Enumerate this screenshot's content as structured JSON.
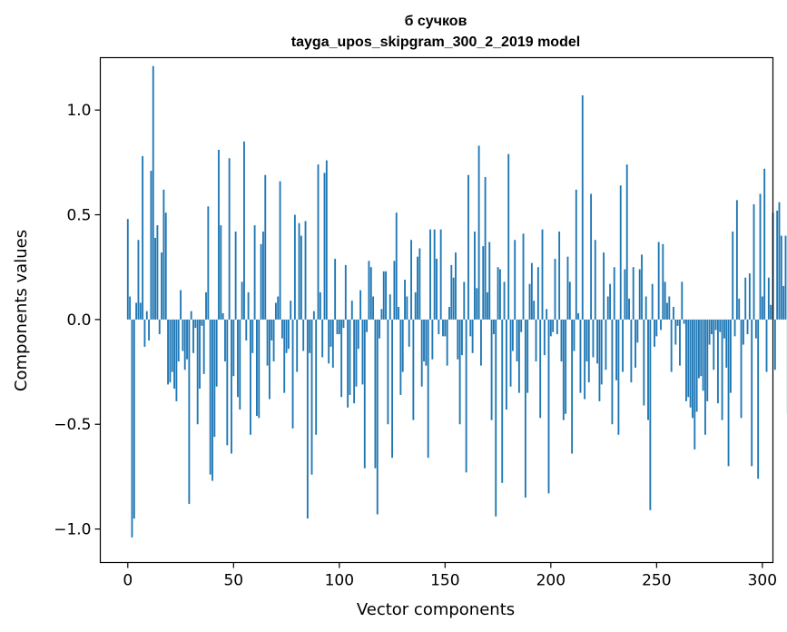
{
  "chart_data": {
    "type": "bar",
    "title": "б сучков",
    "subtitle": "tayga_upos_skipgram_300_2_2019 model",
    "xlabel": "Vector components",
    "ylabel": "Components values",
    "xlim": [
      -13,
      305
    ],
    "ylim": [
      -1.16,
      1.25
    ],
    "xticks": [
      0,
      50,
      100,
      150,
      200,
      250,
      300
    ],
    "xtick_labels": [
      "0",
      "50",
      "100",
      "150",
      "200",
      "250",
      "300"
    ],
    "yticks": [
      -1.0,
      -0.5,
      0.0,
      0.5,
      1.0
    ],
    "ytick_labels": [
      "−1.0",
      "−0.5",
      "0.0",
      "0.5",
      "1.0"
    ],
    "bar_color": "#1f77b4",
    "series": [
      {
        "name": "components",
        "values": [
          0.48,
          0.11,
          -1.04,
          -0.95,
          0.08,
          0.38,
          0.08,
          0.78,
          -0.13,
          0.04,
          -0.1,
          0.71,
          1.21,
          0.39,
          0.45,
          -0.07,
          0.32,
          0.62,
          0.51,
          -0.31,
          -0.3,
          -0.25,
          -0.33,
          -0.39,
          -0.2,
          0.14,
          -0.15,
          -0.24,
          -0.19,
          -0.88,
          0.04,
          -0.16,
          -0.04,
          -0.5,
          -0.33,
          -0.03,
          -0.26,
          0.13,
          0.54,
          -0.74,
          -0.77,
          -0.56,
          -0.32,
          0.81,
          0.45,
          0.03,
          -0.2,
          -0.6,
          0.77,
          -0.64,
          -0.27,
          0.42,
          -0.37,
          -0.43,
          0.18,
          0.85,
          -0.1,
          0.13,
          -0.55,
          -0.16,
          0.45,
          -0.46,
          -0.47,
          0.36,
          0.42,
          0.69,
          -0.22,
          -0.38,
          -0.1,
          -0.2,
          0.08,
          0.11,
          0.66,
          -0.09,
          -0.35,
          -0.16,
          -0.14,
          0.09,
          -0.52,
          0.5,
          -0.25,
          0.46,
          0.4,
          -0.15,
          0.47,
          -0.95,
          -0.16,
          -0.74,
          0.04,
          -0.55,
          0.74,
          0.13,
          -0.18,
          0.7,
          0.76,
          -0.21,
          -0.13,
          -0.23,
          0.29,
          -0.07,
          -0.07,
          -0.37,
          -0.04,
          0.26,
          -0.42,
          -0.36,
          0.09,
          -0.4,
          -0.32,
          -0.14,
          0.14,
          -0.31,
          -0.71,
          -0.06,
          0.28,
          0.25,
          0.11,
          -0.71,
          -0.93,
          -0.09,
          0.05,
          0.23,
          0.23,
          -0.5,
          0.12,
          -0.66,
          0.28,
          0.51,
          0.06,
          -0.36,
          -0.25,
          0.19,
          0.11,
          -0.13,
          0.38,
          -0.48,
          0.13,
          0.3,
          0.34,
          -0.32,
          -0.2,
          -0.22,
          -0.66,
          0.43,
          -0.19,
          0.43,
          0.29,
          -0.07,
          0.43,
          -0.08,
          -0.08,
          -0.22,
          0.06,
          0.26,
          0.2,
          0.32,
          -0.19,
          -0.5,
          -0.17,
          0.18,
          -0.73,
          0.69,
          -0.08,
          -0.16,
          0.42,
          0.15,
          0.83,
          -0.22,
          0.35,
          0.68,
          0.13,
          0.37,
          -0.48,
          -0.07,
          -0.94,
          0.25,
          0.24,
          -0.78,
          0.18,
          -0.43,
          0.79,
          -0.32,
          -0.15,
          0.38,
          -0.2,
          -0.35,
          -0.06,
          0.41,
          -0.85,
          -0.35,
          0.17,
          0.27,
          0.09,
          -0.2,
          0.25,
          -0.47,
          0.43,
          -0.17,
          0.05,
          -0.83,
          -0.08,
          -0.06,
          0.29,
          -0.07,
          0.42,
          -0.2,
          -0.48,
          -0.45,
          0.3,
          0.18,
          -0.64,
          -0.15,
          0.62,
          0.03,
          -0.35,
          1.07,
          -0.38,
          -0.2,
          -0.3,
          0.6,
          -0.18,
          0.38,
          -0.21,
          -0.39,
          -0.31,
          0.32,
          -0.24,
          0.11,
          0.17,
          -0.5,
          0.25,
          -0.29,
          -0.55,
          0.64,
          -0.25,
          0.24,
          0.74,
          0.1,
          -0.3,
          0.25,
          -0.23,
          -0.11,
          0.24,
          0.31,
          -0.41,
          0.11,
          -0.48,
          -0.91,
          0.17,
          -0.13,
          -0.08,
          0.37,
          -0.05,
          0.36,
          0.18,
          0.08,
          0.11,
          -0.25,
          0.06,
          -0.12,
          -0.03,
          -0.22,
          0.18,
          -0.02,
          -0.39,
          -0.37,
          -0.42,
          -0.47,
          -0.62,
          -0.44,
          -0.28,
          -0.27,
          -0.34,
          -0.55,
          -0.39,
          -0.12,
          -0.07,
          -0.24,
          -0.05,
          -0.4,
          -0.06,
          -0.48,
          -0.09,
          -0.23,
          -0.7,
          -0.35,
          0.42,
          -0.08,
          0.57,
          0.1,
          -0.47,
          -0.12,
          0.2,
          -0.07,
          0.22,
          -0.7,
          0.55,
          -0.09,
          -0.76,
          0.6,
          0.11,
          0.72,
          -0.25,
          0.2,
          0.07,
          0.51,
          -0.24,
          0.52,
          0.56,
          0.4,
          0.16,
          0.4,
          -0.45,
          0.0
        ]
      }
    ]
  }
}
